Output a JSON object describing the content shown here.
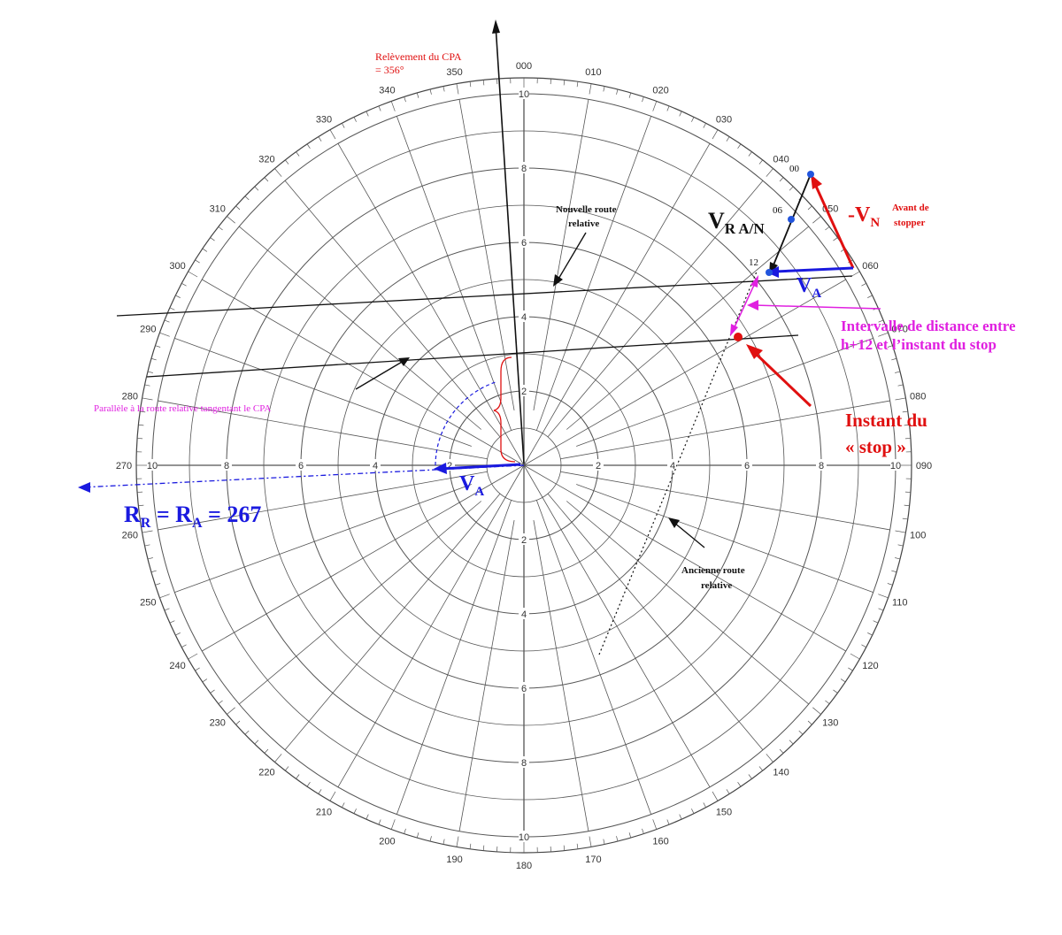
{
  "plot": {
    "bearing_labels": [
      "000",
      "010",
      "020",
      "030",
      "040",
      "050",
      "060",
      "070",
      "080",
      "090",
      "100",
      "110",
      "120",
      "130",
      "140",
      "150",
      "160",
      "170",
      "180",
      "190",
      "200",
      "210",
      "220",
      "230",
      "240",
      "250",
      "260",
      "270",
      "280",
      "290",
      "300",
      "310",
      "320",
      "330",
      "340",
      "350"
    ],
    "range_labels": [
      "2",
      "4",
      "6",
      "8",
      "10"
    ],
    "colors": {
      "red": "#e01010",
      "blue": "#1a1adf",
      "magenta": "#e020e0",
      "grid": "#555555"
    }
  },
  "annotations": {
    "cpa_bearing_line1": "Relèvement du CPA",
    "cpa_bearing_line2": "= 356°",
    "new_route_line1": "Nouvelle route",
    "new_route_line2": "relative",
    "vr_main": "V",
    "vr_sub": "R A/N",
    "vn_main": "-V",
    "vn_sub": "N",
    "before_stop_line1": "Avant de",
    "before_stop_line2": "stopper",
    "va_main": "V",
    "va_sub": "A",
    "interval_line1": "Intervalle de distance entre",
    "interval_line2": "h+12 et l’instant du stop",
    "stop_line1": "Instant du",
    "stop_line2": "« stop »",
    "parallel_note": "Parallèle à la route relative tangentant le CPA",
    "rr_r": "R",
    "rr_r_sub": "R",
    "rr_eq": " = ",
    "rr_a": "R",
    "rr_a_sub": "A",
    "rr_val": " = 267",
    "old_route_line1": "Ancienne route",
    "old_route_line2": "relative",
    "time_00": "00",
    "time_06": "06",
    "time_12": "12"
  }
}
